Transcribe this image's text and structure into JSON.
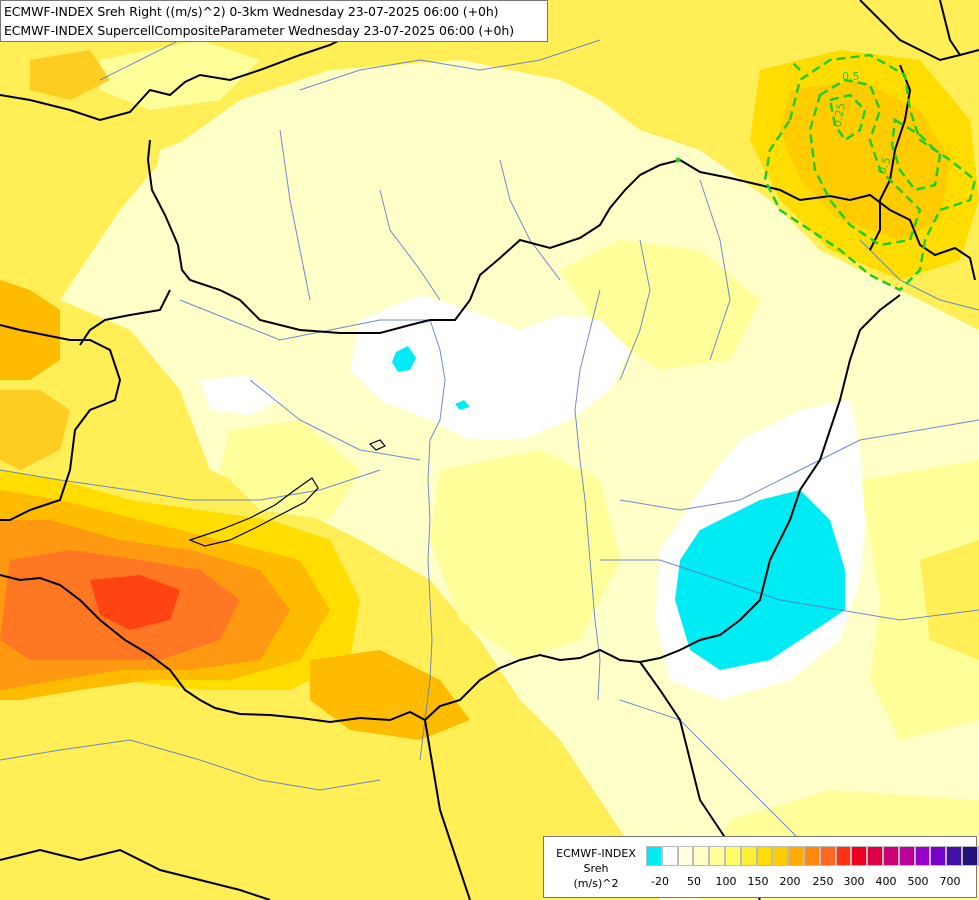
{
  "header": {
    "line1": "ECMWF-INDEX Sreh Right ((m/s)^2) 0-3km Wednesday 23-07-2025 06:00 (+0h)",
    "line2": "ECMWF-INDEX SupercellCompositeParameter Wednesday 23-07-2025 06:00 (+0h)"
  },
  "map": {
    "contour_labels": [
      "0.5",
      "0.25",
      "0.5"
    ],
    "colors": {
      "background_fill": "#ffffc8",
      "fill_50": "#ffff9a",
      "fill_100": "#ffee55",
      "fill_150": "#ffdd00",
      "fill_200": "#ffbb00",
      "fill_250": "#ff9911",
      "fill_300": "#ff6622",
      "fill_400": "#ff3311",
      "negative_fill": "#00ecf4",
      "zero_fill": "#ffffff",
      "borders": "#000000",
      "rivers": "#5577cc",
      "contours": "#22cc22"
    }
  },
  "legend": {
    "title_lines": [
      "ECMWF-INDEX",
      "Sreh",
      "(m/s)^2"
    ],
    "colors": [
      "#00ecf4",
      "#ffffff",
      "#ffffe0",
      "#ffffc8",
      "#ffff9a",
      "#ffff66",
      "#ffee33",
      "#ffdd00",
      "#ffcc00",
      "#ffaa00",
      "#ff8811",
      "#ff6622",
      "#ff3311",
      "#ee0022",
      "#dd0044",
      "#cc0077",
      "#bb0099",
      "#9900cc",
      "#7700cc",
      "#4411aa",
      "#221177",
      "#000066"
    ],
    "labels": [
      "-20",
      "50",
      "100",
      "150",
      "200",
      "250",
      "300",
      "400",
      "500",
      "700"
    ]
  }
}
